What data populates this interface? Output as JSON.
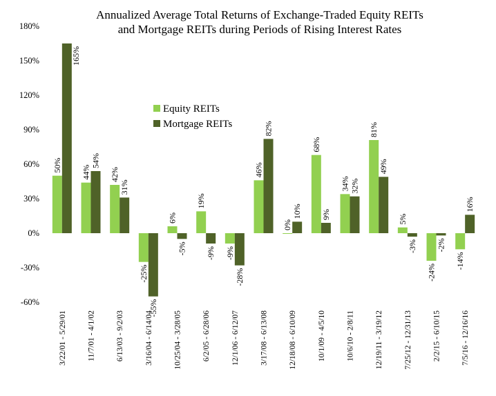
{
  "chart_data": {
    "type": "bar",
    "title_lines": [
      "Annualized Average Total Returns of Exchange-Traded Equity REITs",
      "and Mortgage REITs during Periods of Rising Interest Rates"
    ],
    "categories": [
      "3/22/01 - 5/29/01",
      "11/7/01 - 4/1/02",
      "6/13/03 - 9/2/03",
      "3/16/04 - 6/14/04",
      "10/25/04 - 3/28/05",
      "6/2/05 - 6/28/06",
      "12/1/06 - 6/12/07",
      "3/17/08 - 6/13/08",
      "12/18/08 - 6/10/09",
      "10/1/09 - 4/5/10",
      "10/6/10 - 2/8/11",
      "12/19/11 - 3/19/12",
      "7/25/12 - 12/31/13",
      "2/2/15 - 6/10/15",
      "7/5/16 - 12/16/16"
    ],
    "series": [
      {
        "name": "Equity REITs",
        "color": "#92d050",
        "values": [
          50,
          44,
          42,
          -25,
          6,
          19,
          -9,
          46,
          0,
          68,
          34,
          81,
          5,
          -24,
          -14
        ]
      },
      {
        "name": "Mortgage REITs",
        "color": "#4f6228",
        "values": [
          165,
          54,
          31,
          -55,
          -5,
          -9,
          -28,
          82,
          10,
          9,
          32,
          49,
          -3,
          -2,
          16
        ]
      }
    ],
    "yticks": [
      "-60%",
      "-30%",
      "0%",
      "30%",
      "60%",
      "90%",
      "120%",
      "150%",
      "180%"
    ],
    "ylim": [
      -60,
      180
    ],
    "ylabel": "",
    "xlabel": "",
    "legend": "upper-middle",
    "grid": false
  }
}
